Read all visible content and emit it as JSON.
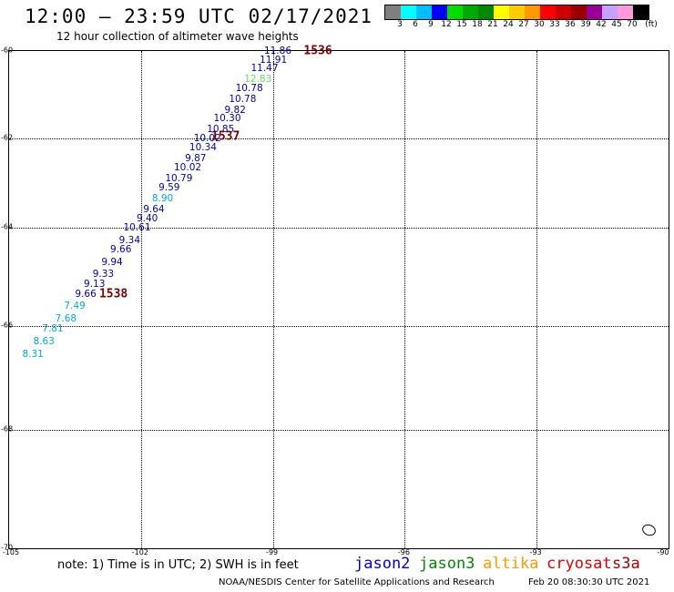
{
  "header": {
    "title": "12:00 – 23:59 UTC 02/17/2021",
    "subtitle": "12 hour collection of altimeter wave heights"
  },
  "color_scale": {
    "colors": [
      "#7f7f7f",
      "#00ffff",
      "#00bfff",
      "#0000ff",
      "#00dd00",
      "#00aa00",
      "#008800",
      "#ffff00",
      "#ffcc00",
      "#ff9900",
      "#ff0000",
      "#cc0000",
      "#990000",
      "#99009a",
      "#c8a0ff",
      "#ff99dd",
      "#000000"
    ],
    "labels": [
      "3",
      "6",
      "9",
      "12",
      "15",
      "18",
      "21",
      "24",
      "27",
      "30",
      "33",
      "36",
      "39",
      "42",
      "45",
      "70"
    ],
    "unit": "(ft)"
  },
  "axes": {
    "y_labels": [
      "-60",
      "-62",
      "-64",
      "-66",
      "-68",
      "-70"
    ],
    "x_labels": [
      "-105",
      "-102",
      "-99",
      "-96",
      "-93",
      "-90"
    ]
  },
  "passes": [
    {
      "id": "1536",
      "lon": -98.3,
      "lat": -60.0
    },
    {
      "id": "1537",
      "lon": -100.4,
      "lat": -61.95
    },
    {
      "id": "1538",
      "lon": -102.95,
      "lat": -65.35
    }
  ],
  "observations": [
    {
      "v": "11.86",
      "lon": -99.2,
      "lat": -60.0,
      "c": "#0000b0"
    },
    {
      "v": "11.91",
      "lon": -99.3,
      "lat": -60.2,
      "c": "#0000b0"
    },
    {
      "v": "11.47",
      "lon": -99.5,
      "lat": -60.4,
      "c": "#0000b0"
    },
    {
      "v": "12.83",
      "lon": -99.65,
      "lat": -60.65,
      "c": "#66dd66"
    },
    {
      "v": "10.78",
      "lon": -99.85,
      "lat": -60.85,
      "c": "#0000b0"
    },
    {
      "v": "10.78",
      "lon": -100.0,
      "lat": -61.1,
      "c": "#0000b0"
    },
    {
      "v": "9.82",
      "lon": -100.1,
      "lat": -61.35,
      "c": "#0000b0"
    },
    {
      "v": "10.30",
      "lon": -100.35,
      "lat": -61.55,
      "c": "#0000b0"
    },
    {
      "v": "10.85",
      "lon": -100.5,
      "lat": -61.8,
      "c": "#0000b0"
    },
    {
      "v": "10.02",
      "lon": -100.8,
      "lat": -62.0,
      "c": "#0000b0"
    },
    {
      "v": "10.34",
      "lon": -100.9,
      "lat": -62.2,
      "c": "#0000b0"
    },
    {
      "v": "9.87",
      "lon": -101.0,
      "lat": -62.45,
      "c": "#0000b0"
    },
    {
      "v": "10.02",
      "lon": -101.25,
      "lat": -62.65,
      "c": "#0000b0"
    },
    {
      "v": "10.79",
      "lon": -101.45,
      "lat": -62.9,
      "c": "#0000b0"
    },
    {
      "v": "9.59",
      "lon": -101.6,
      "lat": -63.1,
      "c": "#0000b0"
    },
    {
      "v": "8.90",
      "lon": -101.75,
      "lat": -63.35,
      "c": "#00aadd"
    },
    {
      "v": "9.64",
      "lon": -101.95,
      "lat": -63.6,
      "c": "#0000b0"
    },
    {
      "v": "9.40",
      "lon": -102.1,
      "lat": -63.8,
      "c": "#0000b0"
    },
    {
      "v": "10.61",
      "lon": -102.4,
      "lat": -64.0,
      "c": "#0000b0"
    },
    {
      "v": "9.34",
      "lon": -102.5,
      "lat": -64.25,
      "c": "#0000b0"
    },
    {
      "v": "9.66",
      "lon": -102.7,
      "lat": -64.45,
      "c": "#0000b0"
    },
    {
      "v": "9.94",
      "lon": -102.9,
      "lat": -64.7,
      "c": "#0000b0"
    },
    {
      "v": "9.33",
      "lon": -103.1,
      "lat": -64.95,
      "c": "#0000b0"
    },
    {
      "v": "9.13",
      "lon": -103.3,
      "lat": -65.15,
      "c": "#0000b0"
    },
    {
      "v": "9.66",
      "lon": -103.5,
      "lat": -65.35,
      "c": "#0000b0"
    },
    {
      "v": "7.49",
      "lon": -103.75,
      "lat": -65.6,
      "c": "#00aadd"
    },
    {
      "v": "7.68",
      "lon": -103.95,
      "lat": -65.85,
      "c": "#00aadd"
    },
    {
      "v": "7.81",
      "lon": -104.25,
      "lat": -66.05,
      "c": "#00aadd"
    },
    {
      "v": "8.63",
      "lon": -104.45,
      "lat": -66.3,
      "c": "#00aadd"
    },
    {
      "v": "8.31",
      "lon": -104.7,
      "lat": -66.55,
      "c": "#00aadd"
    }
  ],
  "note": "note: 1) Time is in UTC; 2) SWH is in feet",
  "satellites": [
    {
      "name": "jason2",
      "color": "#0000dd"
    },
    {
      "name": "jason3",
      "color": "#008800"
    },
    {
      "name": "altika",
      "color": "#ff9900"
    },
    {
      "name": "cryosat",
      "color": "#dd0000"
    },
    {
      "name": "s3a",
      "color": "#aa0000"
    }
  ],
  "footer": {
    "credit": "NOAA/NESDIS Center for Satellite Applications and Research",
    "timestamp": "Feb 20 08:30:30 UTC 2021"
  }
}
